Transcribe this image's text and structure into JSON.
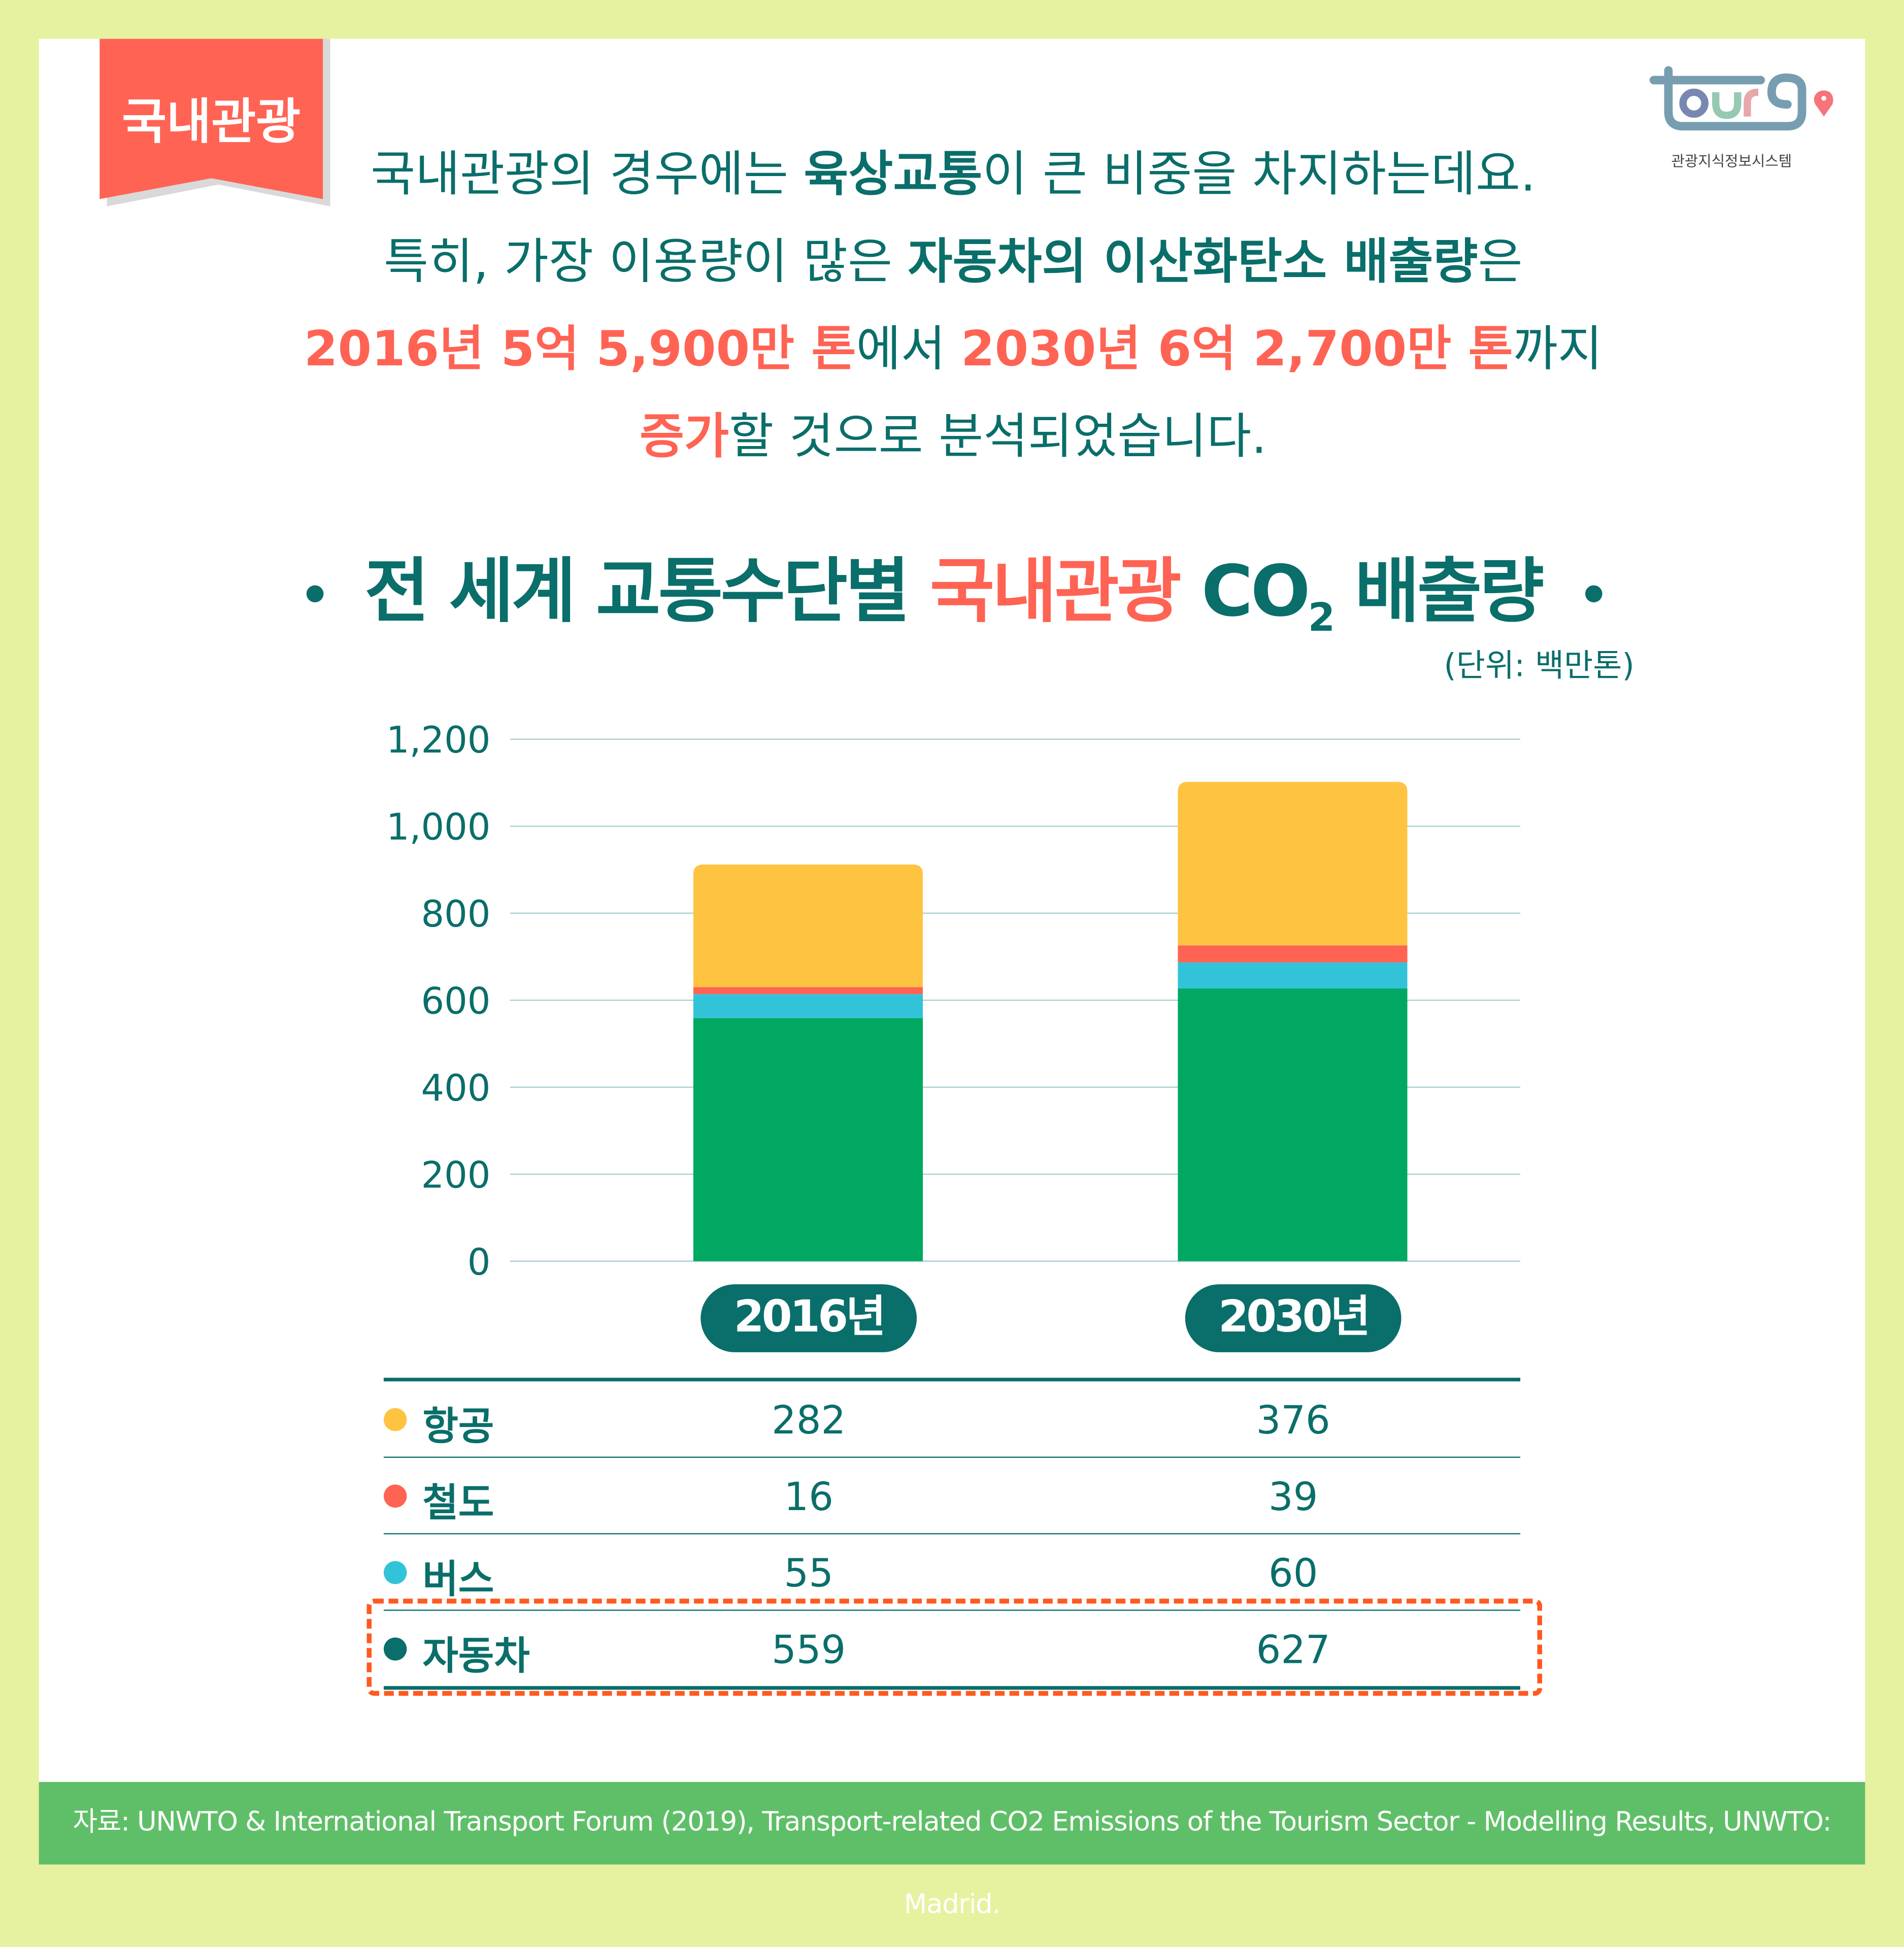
{
  "tag": "국내관광",
  "logo": {
    "text": "tourg",
    "subtitle": "관광지식정보시스템"
  },
  "intro": {
    "l1a": "국내관광의 경우에는 ",
    "l1b": "육상교통",
    "l1c": "이 큰 비중을 차지하는데요.",
    "l2a": "특히, 가장 이용량이 많은 ",
    "l2b": "자동차의 이산화탄소 배출량",
    "l2c": "은",
    "l3a": "2016년 5억 5,900만 톤",
    "l3b": "에서 ",
    "l3c": "2030년 6억 2,700만 톤",
    "l3d": "까지",
    "l4a": "증가",
    "l4b": "할 것으로 분석되었습니다."
  },
  "colors": {
    "teal": "#0a6e6a",
    "coral": "#ff6354",
    "air": "#ffc342",
    "rail": "#ff6354",
    "bus": "#33c3d9",
    "car": "#00a862",
    "background": "#e6f29f",
    "footer": "#5fbf68",
    "highlight": "#ff5a1f"
  },
  "chart_data": {
    "type": "bar",
    "stacked": true,
    "title_parts": {
      "a": "전 세계 교통수단별 ",
      "b": "국내관광",
      "c": " CO",
      "sub": "2",
      "d": " 배출량"
    },
    "unit": "(단위: 백만톤)",
    "categories": [
      "2016년",
      "2030년"
    ],
    "series": [
      {
        "name": "자동차",
        "values": [
          559,
          627
        ],
        "color": "#00a862",
        "dot": "#0a6e6a"
      },
      {
        "name": "버스",
        "values": [
          55,
          60
        ],
        "color": "#33c3d9",
        "dot": "#33c3d9"
      },
      {
        "name": "철도",
        "values": [
          16,
          39
        ],
        "color": "#ff6354",
        "dot": "#ff6354"
      },
      {
        "name": "항공",
        "values": [
          282,
          376
        ],
        "color": "#ffc342",
        "dot": "#ffc342"
      }
    ],
    "ylim": [
      0,
      1200
    ],
    "yticks": [
      "0",
      "200",
      "400",
      "600",
      "800",
      "1,000",
      "1,200"
    ],
    "grid": true
  },
  "table_rows": [
    {
      "name": "항공",
      "v1": "282",
      "v2": "376",
      "color": "#ffc342"
    },
    {
      "name": "철도",
      "v1": "16",
      "v2": "39",
      "color": "#ff6354"
    },
    {
      "name": "버스",
      "v1": "55",
      "v2": "60",
      "color": "#33c3d9"
    },
    {
      "name": "자동차",
      "v1": "559",
      "v2": "627",
      "color": "#0a6e6a"
    }
  ],
  "footer": "자료: UNWTO & International Transport Forum (2019), Transport-related CO2 Emissions of the Tourism Sector - Modelling Results, UNWTO: Madrid."
}
